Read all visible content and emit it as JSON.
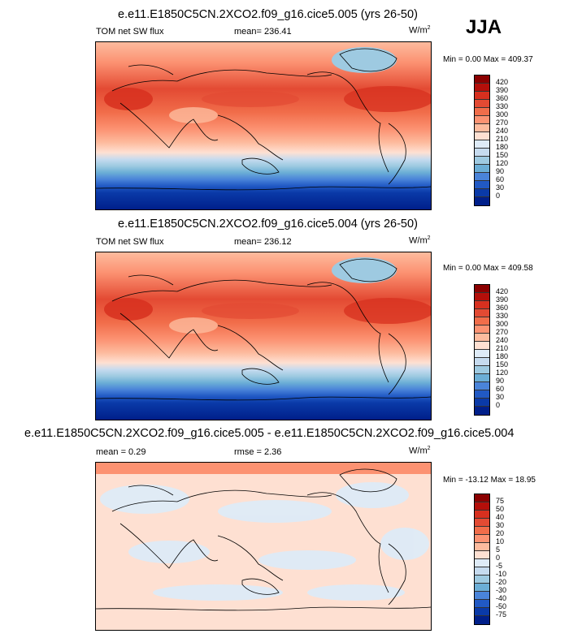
{
  "season": "JJA",
  "units": "W/m",
  "units_sup": "2",
  "panels": [
    {
      "title": "e.e11.E1850C5CN.2XCO2.f09_g16.cice5.005 (yrs 26-50)",
      "left_label": "TOM net SW flux",
      "center_label": "mean= 236.41",
      "minmax": "Min =   0.00 Max = 409.37",
      "colorbar_labels": [
        "420",
        "390",
        "360",
        "330",
        "300",
        "270",
        "240",
        "210",
        "180",
        "150",
        "120",
        "90",
        "60",
        "30",
        "0"
      ],
      "colorbar_colors": [
        "#8b0000",
        "#b40f0a",
        "#d7301f",
        "#e34a33",
        "#f16d4a",
        "#fc9272",
        "#fdbb9e",
        "#fee0d2",
        "#deebf7",
        "#c6dbef",
        "#9ecae1",
        "#6baed6",
        "#4a84d9",
        "#2159c4",
        "#0a3aa8",
        "#001f8a"
      ]
    },
    {
      "title": "e.e11.E1850C5CN.2XCO2.f09_g16.cice5.004 (yrs 26-50)",
      "left_label": "TOM net SW flux",
      "center_label": "mean= 236.12",
      "minmax": "Min =   0.00 Max = 409.58",
      "colorbar_labels": [
        "420",
        "390",
        "360",
        "330",
        "300",
        "270",
        "240",
        "210",
        "180",
        "150",
        "120",
        "90",
        "60",
        "30",
        "0"
      ],
      "colorbar_colors": [
        "#8b0000",
        "#b40f0a",
        "#d7301f",
        "#e34a33",
        "#f16d4a",
        "#fc9272",
        "#fdbb9e",
        "#fee0d2",
        "#deebf7",
        "#c6dbef",
        "#9ecae1",
        "#6baed6",
        "#4a84d9",
        "#2159c4",
        "#0a3aa8",
        "#001f8a"
      ]
    },
    {
      "title": "e.e11.E1850C5CN.2XCO2.f09_g16.cice5.005 - e.e11.E1850C5CN.2XCO2.f09_g16.cice5.004",
      "left_label": "mean =   0.29",
      "center_label": "rmse =   2.36",
      "minmax": "Min = -13.12 Max =  18.95",
      "colorbar_labels": [
        "75",
        "50",
        "40",
        "30",
        "20",
        "10",
        "5",
        "0",
        "-5",
        "-10",
        "-20",
        "-30",
        "-40",
        "-50",
        "-75"
      ],
      "colorbar_colors": [
        "#8b0000",
        "#b40f0a",
        "#d7301f",
        "#e34a33",
        "#f16d4a",
        "#fc9272",
        "#fdbb9e",
        "#fee0d2",
        "#deebf7",
        "#c6dbef",
        "#9ecae1",
        "#6baed6",
        "#4a84d9",
        "#2159c4",
        "#0a3aa8",
        "#001f8a"
      ]
    }
  ]
}
